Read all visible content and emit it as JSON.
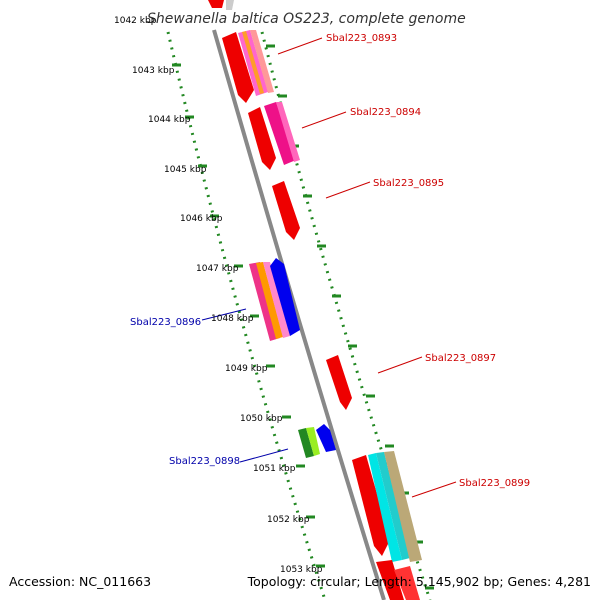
{
  "title": "Shewanella baltica OS223, complete genome",
  "accession": "Accession: NC_011663",
  "summary": "Topology: circular; Length: 5,145,902 bp; Genes: 4,281",
  "ticks": [
    "1042 kbp",
    "1043 kbp",
    "1044 kbp",
    "1045 kbp",
    "1046 kbp",
    "1047 kbp",
    "1048 kbp",
    "1049 kbp",
    "1050 kbp",
    "1051 kbp",
    "1052 kbp",
    "1053 kbp"
  ],
  "genes": [
    {
      "name": "Sbal223_0893",
      "strand": "forward"
    },
    {
      "name": "Sbal223_0894",
      "strand": "forward"
    },
    {
      "name": "Sbal223_0895",
      "strand": "forward"
    },
    {
      "name": "Sbal223_0896",
      "strand": "reverse"
    },
    {
      "name": "Sbal223_0897",
      "strand": "forward"
    },
    {
      "name": "Sbal223_0898",
      "strand": "reverse"
    },
    {
      "name": "Sbal223_0899",
      "strand": "forward"
    }
  ],
  "colors": {
    "forward_label": "#cc0000",
    "reverse_label": "#0000aa",
    "backbone": "#888888",
    "tick_marks": "#228822"
  }
}
